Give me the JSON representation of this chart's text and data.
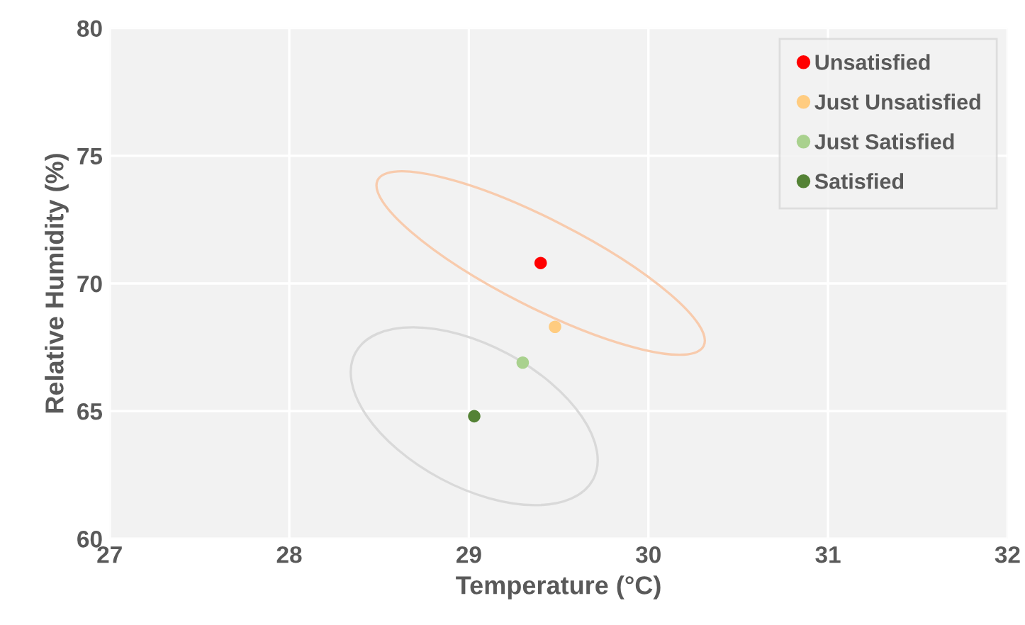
{
  "chart_data": {
    "type": "scatter",
    "xlabel": "Temperature (°C)",
    "ylabel": "Relative Humidity (%)",
    "xlim": [
      27,
      32
    ],
    "xticks": [
      27,
      28,
      29,
      30,
      31,
      32
    ],
    "ylim": [
      60,
      80
    ],
    "yticks": [
      60,
      65,
      70,
      75,
      80
    ],
    "grid": true,
    "legend": "top right",
    "marker": "circle",
    "series": [
      {
        "name": "Unsatisfied",
        "color": "#ff0000",
        "x": [
          29.4
        ],
        "values": [
          70.8
        ]
      },
      {
        "name": "Just Unsatisfied",
        "color": "#ffcc80",
        "x": [
          29.48
        ],
        "values": [
          68.3
        ]
      },
      {
        "name": "Just Satisfied",
        "color": "#a9d18e",
        "x": [
          29.3
        ],
        "values": [
          66.9
        ]
      },
      {
        "name": "Satisfied",
        "color": "#548235",
        "x": [
          29.03
        ],
        "values": [
          64.8
        ]
      }
    ]
  }
}
